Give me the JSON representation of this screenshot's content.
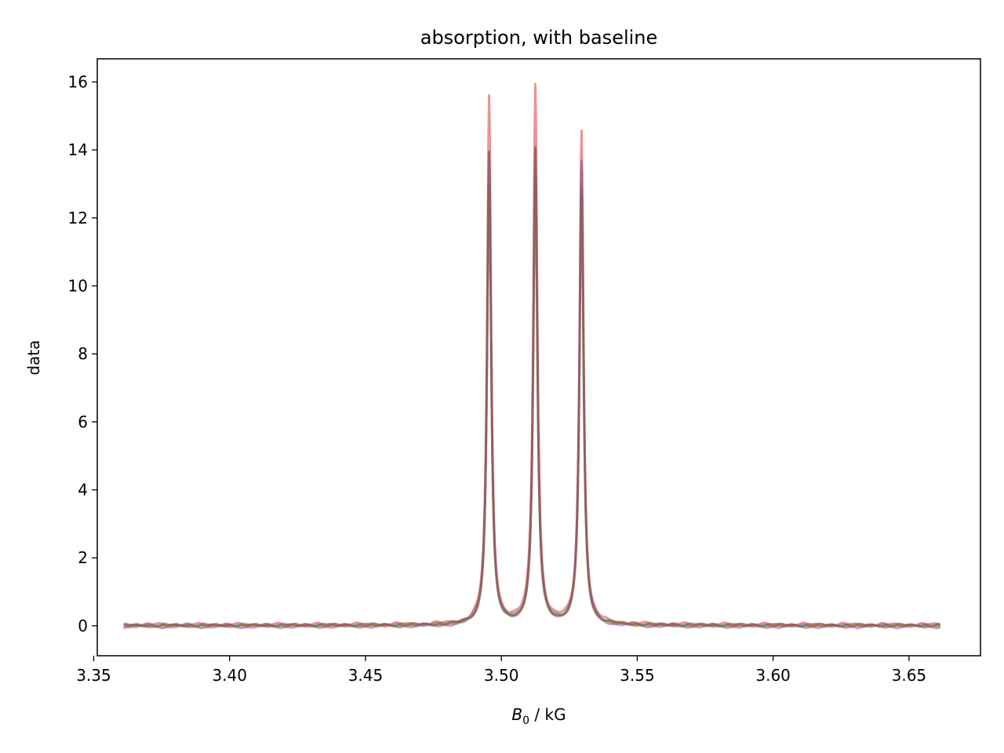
{
  "chart_data": {
    "type": "line",
    "title": "absorption, with baseline",
    "xlabel_symbol": "B",
    "xlabel_subscript": "0",
    "xlabel_rest": " / kG",
    "ylabel": "data",
    "xlim": [
      3.3513,
      3.6763
    ],
    "ylim": [
      -0.88,
      16.68
    ],
    "x_ticks": [
      3.35,
      3.4,
      3.45,
      3.5,
      3.55,
      3.6,
      3.65
    ],
    "x_tick_labels": [
      "3.35",
      "3.40",
      "3.45",
      "3.50",
      "3.55",
      "3.60",
      "3.65"
    ],
    "y_ticks": [
      0,
      2,
      4,
      6,
      8,
      10,
      12,
      14,
      16
    ],
    "y_tick_labels": [
      "0",
      "2",
      "4",
      "6",
      "8",
      "10",
      "12",
      "14",
      "16"
    ],
    "grid": false,
    "x_range": [
      3.361,
      3.6615
    ],
    "line_centers": [
      3.4955,
      3.5125,
      3.5295
    ],
    "series": [
      {
        "color": "#1f77b4",
        "peaks": [
          13.9,
          14.0,
          13.6
        ],
        "baseline": 0.0
      },
      {
        "color": "#ff7f0e",
        "peaks": [
          13.5,
          13.9,
          13.4
        ],
        "baseline": -0.02
      },
      {
        "color": "#2ca02c",
        "peaks": [
          13.0,
          12.8,
          12.6
        ],
        "baseline": 0.02
      },
      {
        "color": "#d62728",
        "peaks": [
          15.5,
          15.85,
          14.5
        ],
        "baseline": 0.04
      },
      {
        "color": "#9467bd",
        "peaks": [
          13.6,
          14.0,
          13.7
        ],
        "baseline": -0.03
      },
      {
        "color": "#8c564b",
        "peaks": [
          13.9,
          14.0,
          12.8
        ],
        "baseline": 0.01
      }
    ]
  }
}
